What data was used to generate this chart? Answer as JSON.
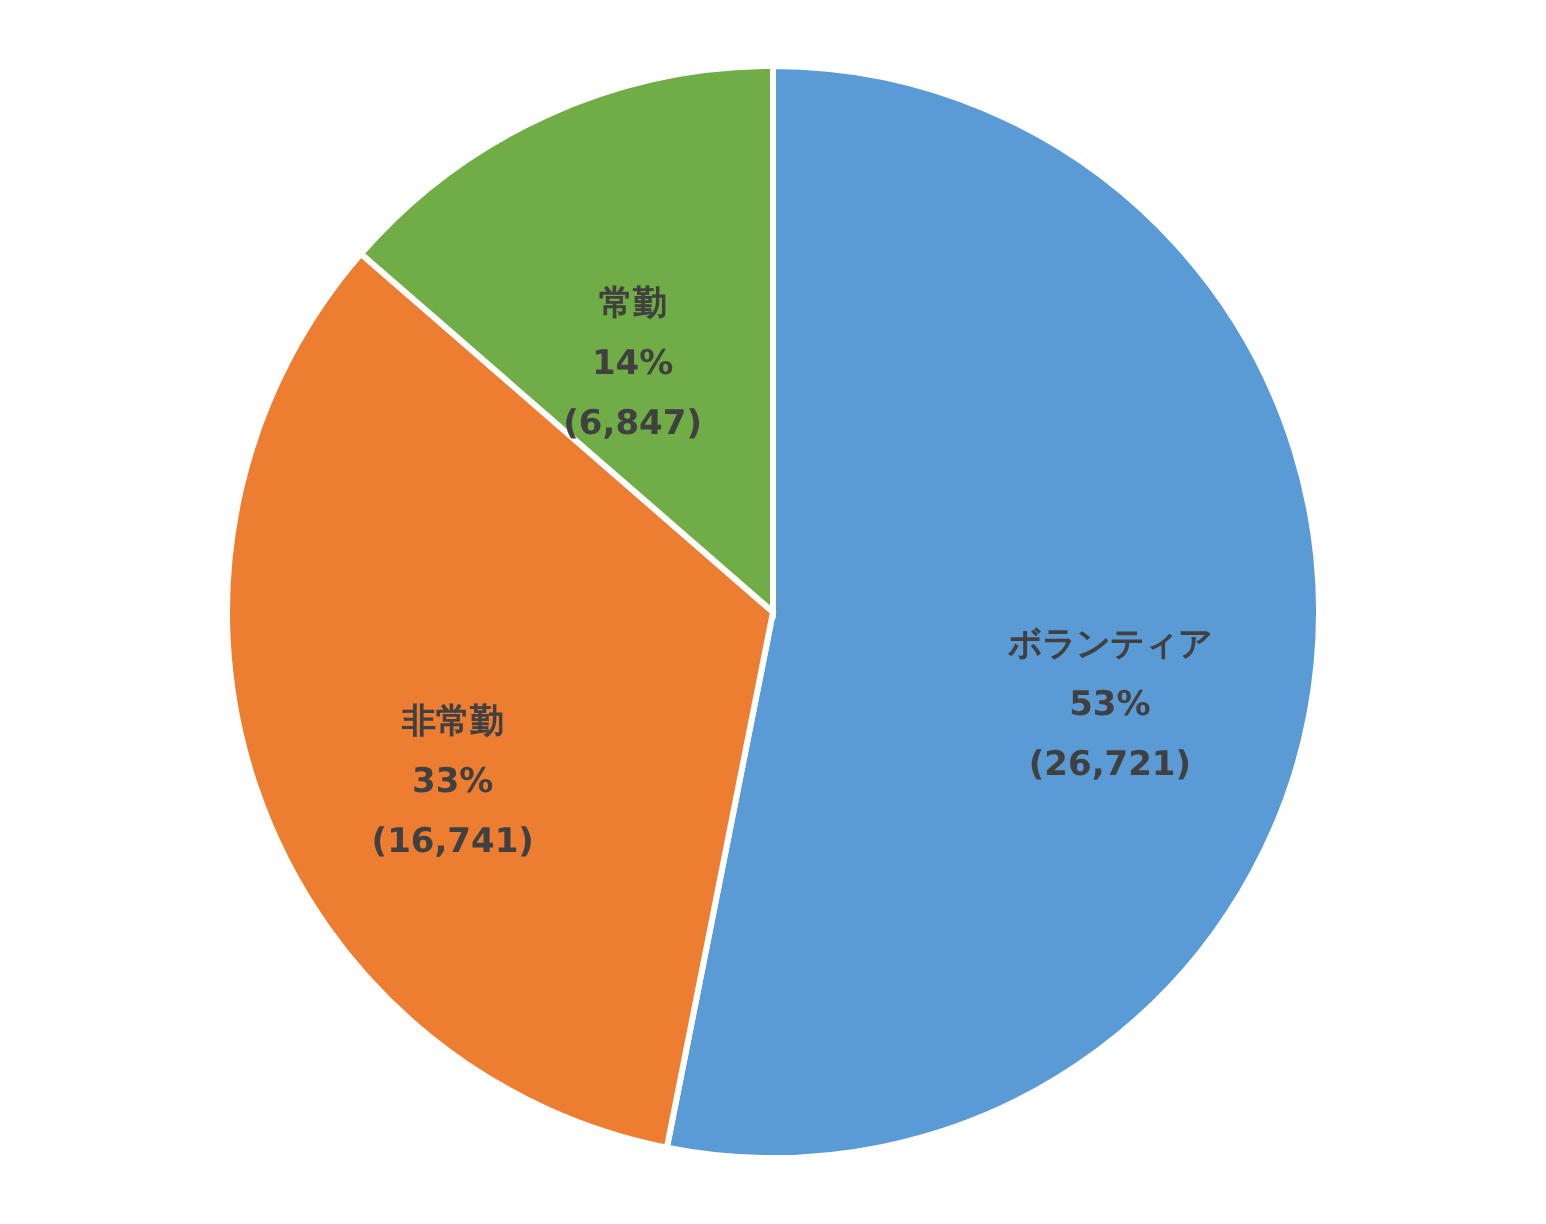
{
  "chart_data": {
    "type": "pie",
    "categories": [
      "ボランティア",
      "非常勤",
      "常勤"
    ],
    "values": [
      26721,
      16741,
      6847
    ],
    "colors": [
      "#5b9bd5",
      "#ed7d31",
      "#70ad47"
    ],
    "value_labels": [
      "53%\n(26,721)",
      "33%\n(16,741)",
      "14%\n(6,847)"
    ]
  }
}
